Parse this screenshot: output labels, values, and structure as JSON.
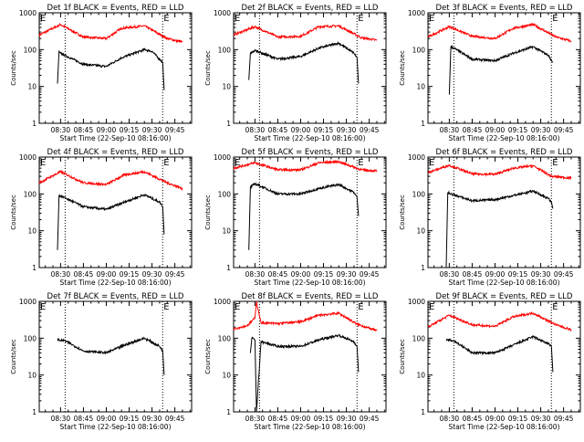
{
  "chart_data": [
    {
      "type": "line",
      "title": "Det 1f BLACK = Events, RED = LLD",
      "xlabel": "Start Time (22-Sep-10 08:16:00)",
      "ylabel": "Counts/sec",
      "x_ticks": [
        "08:30",
        "08:45",
        "09:00",
        "09:15",
        "09:30",
        "09:45"
      ],
      "y_ticks": [
        "1",
        "10",
        "100",
        "1000"
      ],
      "ylim": [
        1,
        1000
      ],
      "y_scale": "log",
      "markers": [
        "E",
        "E"
      ],
      "dotted_lines_at": [
        "08:33",
        "09:37"
      ],
      "series": [
        {
          "name": "RED",
          "color": "#ff0000",
          "x": [
            "08:16",
            "08:30",
            "08:45",
            "09:00",
            "09:10",
            "09:25",
            "09:40",
            "09:50"
          ],
          "values": [
            250,
            480,
            220,
            200,
            380,
            440,
            200,
            160
          ]
        },
        {
          "name": "BLACK",
          "color": "#000000",
          "x": [
            "08:28",
            "08:29",
            "08:30",
            "08:45",
            "09:00",
            "09:10",
            "09:25",
            "09:30",
            "09:35",
            "09:37",
            "09:38"
          ],
          "values": [
            12,
            90,
            80,
            40,
            35,
            60,
            100,
            90,
            55,
            45,
            8
          ]
        }
      ]
    },
    {
      "type": "line",
      "title": "Det 2f BLACK = Events, RED = LLD",
      "xlabel": "Start Time (22-Sep-10 08:16:00)",
      "ylabel": "Counts/sec",
      "x_ticks": [
        "08:30",
        "08:45",
        "09:00",
        "09:15",
        "09:30",
        "09:45"
      ],
      "y_ticks": [
        "1",
        "10",
        "100",
        "1000"
      ],
      "ylim": [
        1,
        1000
      ],
      "y_scale": "log",
      "markers": [
        "E",
        "E"
      ],
      "dotted_lines_at": [
        "08:33",
        "09:37"
      ],
      "series": [
        {
          "name": "RED",
          "color": "#ff0000",
          "x": [
            "08:16",
            "08:30",
            "08:45",
            "09:00",
            "09:12",
            "09:25",
            "09:40",
            "09:50"
          ],
          "values": [
            250,
            420,
            220,
            230,
            420,
            440,
            210,
            180
          ]
        },
        {
          "name": "BLACK",
          "color": "#000000",
          "x": [
            "08:26",
            "08:27",
            "08:30",
            "08:45",
            "09:00",
            "09:12",
            "09:25",
            "09:35",
            "09:37",
            "09:38"
          ],
          "values": [
            15,
            80,
            95,
            55,
            65,
            110,
            150,
            80,
            60,
            12
          ]
        }
      ]
    },
    {
      "type": "line",
      "title": "Det 3f BLACK = Events, RED = LLD",
      "xlabel": "Start Time (22-Sep-10 08:16:00)",
      "ylabel": "Counts/sec",
      "x_ticks": [
        "08:30",
        "08:45",
        "09:00",
        "09:15",
        "09:30",
        "09:45"
      ],
      "y_ticks": [
        "1",
        "10",
        "100",
        "1000"
      ],
      "ylim": [
        1,
        1000
      ],
      "y_scale": "log",
      "markers": [
        "E",
        "E"
      ],
      "dotted_lines_at": [
        "08:33",
        "09:37"
      ],
      "series": [
        {
          "name": "RED",
          "color": "#ff0000",
          "x": [
            "08:16",
            "08:30",
            "08:45",
            "09:00",
            "09:12",
            "09:25",
            "09:40",
            "09:50"
          ],
          "values": [
            220,
            420,
            230,
            200,
            380,
            480,
            220,
            170
          ]
        },
        {
          "name": "BLACK",
          "color": "#000000",
          "x": [
            "08:30",
            "08:31",
            "08:33",
            "08:45",
            "09:00",
            "09:12",
            "09:25",
            "09:35",
            "09:37",
            "09:38"
          ],
          "values": [
            6,
            120,
            110,
            55,
            50,
            80,
            120,
            70,
            50,
            45
          ]
        }
      ]
    },
    {
      "type": "line",
      "title": "Det 4f BLACK = Events, RED = LLD",
      "xlabel": "Start Time (22-Sep-10 08:16:00)",
      "ylabel": "Counts/sec",
      "x_ticks": [
        "08:30",
        "08:45",
        "09:00",
        "09:15",
        "09:30",
        "09:45"
      ],
      "y_ticks": [
        "1",
        "10",
        "100",
        "1000"
      ],
      "ylim": [
        1,
        1000
      ],
      "y_scale": "log",
      "markers": [
        "E",
        "E"
      ],
      "dotted_lines_at": [
        "08:33",
        "09:37"
      ],
      "series": [
        {
          "name": "RED",
          "color": "#ff0000",
          "x": [
            "08:16",
            "08:30",
            "08:45",
            "09:00",
            "09:12",
            "09:25",
            "09:40",
            "09:50"
          ],
          "values": [
            200,
            400,
            200,
            180,
            330,
            400,
            200,
            140
          ]
        },
        {
          "name": "BLACK",
          "color": "#000000",
          "x": [
            "08:28",
            "08:29",
            "08:31",
            "08:45",
            "09:00",
            "09:12",
            "09:25",
            "09:35",
            "09:37",
            "09:38"
          ],
          "values": [
            3,
            90,
            85,
            45,
            38,
            60,
            95,
            60,
            45,
            8
          ]
        }
      ]
    },
    {
      "type": "line",
      "title": "Det 5f BLACK = Events, RED = LLD",
      "xlabel": "Start Time (22-Sep-10 08:16:00)",
      "ylabel": "Counts/sec",
      "x_ticks": [
        "08:30",
        "08:45",
        "09:00",
        "09:15",
        "09:30",
        "09:45"
      ],
      "y_ticks": [
        "1",
        "10",
        "100",
        "1000"
      ],
      "ylim": [
        1,
        1000
      ],
      "y_scale": "log",
      "markers": [
        "E",
        "E"
      ],
      "dotted_lines_at": [
        "08:33",
        "09:37"
      ],
      "series": [
        {
          "name": "RED",
          "color": "#ff0000",
          "x": [
            "08:16",
            "08:30",
            "08:45",
            "09:00",
            "09:12",
            "09:25",
            "09:40",
            "09:50"
          ],
          "values": [
            500,
            700,
            450,
            450,
            700,
            750,
            450,
            420
          ]
        },
        {
          "name": "BLACK",
          "color": "#000000",
          "x": [
            "08:26",
            "08:27",
            "08:30",
            "08:45",
            "09:00",
            "09:12",
            "09:25",
            "09:35",
            "09:37",
            "09:38"
          ],
          "values": [
            3,
            150,
            190,
            100,
            100,
            140,
            180,
            110,
            80,
            25
          ]
        }
      ]
    },
    {
      "type": "line",
      "title": "Det 6f BLACK = Events, RED = LLD",
      "xlabel": "Start Time (22-Sep-10 08:16:00)",
      "ylabel": "Counts/sec",
      "x_ticks": [
        "08:30",
        "08:45",
        "09:00",
        "09:15",
        "09:30",
        "09:45"
      ],
      "y_ticks": [
        "1",
        "10",
        "100",
        "1000"
      ],
      "ylim": [
        1,
        1000
      ],
      "y_scale": "log",
      "markers": [
        "E",
        "E"
      ],
      "dotted_lines_at": [
        "08:33",
        "09:37"
      ],
      "series": [
        {
          "name": "RED",
          "color": "#ff0000",
          "x": [
            "08:16",
            "08:30",
            "08:45",
            "09:00",
            "09:12",
            "09:25",
            "09:37",
            "09:50"
          ],
          "values": [
            380,
            600,
            350,
            340,
            500,
            580,
            300,
            270
          ]
        },
        {
          "name": "BLACK",
          "color": "#000000",
          "x": [
            "08:28",
            "08:29",
            "08:31",
            "08:45",
            "09:00",
            "09:12",
            "09:25",
            "09:35",
            "09:37",
            "09:38"
          ],
          "values": [
            1,
            110,
            100,
            65,
            70,
            90,
            120,
            75,
            60,
            40
          ]
        }
      ]
    },
    {
      "type": "line",
      "title": "Det 7f BLACK = Events, RED = LLD",
      "xlabel": "Start Time (22-Sep-10 08:16:00)",
      "ylabel": "Counts/sec",
      "x_ticks": [
        "08:30",
        "08:45",
        "09:00",
        "09:15",
        "09:30",
        "09:45"
      ],
      "y_ticks": [
        "1",
        "10",
        "100",
        "1000"
      ],
      "ylim": [
        1,
        1000
      ],
      "y_scale": "log",
      "markers": [
        "E",
        "E"
      ],
      "dotted_lines_at": [
        "08:33",
        "09:37"
      ],
      "series": [
        {
          "name": "BLACK",
          "color": "#000000",
          "x": [
            "08:28",
            "08:33",
            "08:45",
            "09:00",
            "09:12",
            "09:25",
            "09:35",
            "09:37",
            "09:38"
          ],
          "values": [
            90,
            85,
            45,
            40,
            65,
            100,
            60,
            45,
            10
          ]
        }
      ]
    },
    {
      "type": "line",
      "title": "Det 8f BLACK = Events, RED = LLD",
      "xlabel": "Start Time (22-Sep-10 08:16:00)",
      "ylabel": "Counts/sec",
      "x_ticks": [
        "08:30",
        "08:45",
        "09:00",
        "09:15",
        "09:30",
        "09:45"
      ],
      "y_ticks": [
        "1",
        "10",
        "100",
        "1000"
      ],
      "ylim": [
        1,
        1000
      ],
      "y_scale": "log",
      "markers": [
        "E",
        "E"
      ],
      "dotted_lines_at": [
        "08:33",
        "09:37"
      ],
      "series": [
        {
          "name": "RED",
          "color": "#ff0000",
          "x": [
            "08:16",
            "08:25",
            "08:30",
            "08:31",
            "08:34",
            "08:45",
            "09:00",
            "09:12",
            "09:25",
            "09:37",
            "09:50"
          ],
          "values": [
            180,
            220,
            350,
            1000,
            260,
            250,
            280,
            420,
            480,
            240,
            160
          ]
        },
        {
          "name": "BLACK",
          "color": "#000000",
          "x": [
            "08:27",
            "08:28",
            "08:30",
            "08:31",
            "08:34",
            "08:45",
            "09:00",
            "09:12",
            "09:25",
            "09:35",
            "09:37",
            "09:38"
          ],
          "values": [
            40,
            100,
            90,
            1,
            80,
            60,
            60,
            90,
            120,
            80,
            60,
            12
          ]
        }
      ]
    },
    {
      "type": "line",
      "title": "Det 9f BLACK = Events, RED = LLD",
      "xlabel": "Start Time (22-Sep-10 08:16:00)",
      "ylabel": "Counts/sec",
      "x_ticks": [
        "08:30",
        "08:45",
        "09:00",
        "09:15",
        "09:30",
        "09:45"
      ],
      "y_ticks": [
        "1",
        "10",
        "100",
        "1000"
      ],
      "ylim": [
        1,
        1000
      ],
      "y_scale": "log",
      "markers": [
        "E",
        "E"
      ],
      "dotted_lines_at": [
        "08:33",
        "09:37"
      ],
      "series": [
        {
          "name": "RED",
          "color": "#ff0000",
          "x": [
            "08:16",
            "08:30",
            "08:45",
            "09:00",
            "09:12",
            "09:25",
            "09:40",
            "09:50"
          ],
          "values": [
            200,
            420,
            230,
            210,
            380,
            480,
            230,
            170
          ]
        },
        {
          "name": "BLACK",
          "color": "#000000",
          "x": [
            "08:28",
            "08:33",
            "08:45",
            "09:00",
            "09:12",
            "09:25",
            "09:35",
            "09:37",
            "09:38"
          ],
          "values": [
            90,
            85,
            40,
            40,
            65,
            110,
            70,
            60,
            12
          ]
        }
      ]
    }
  ]
}
